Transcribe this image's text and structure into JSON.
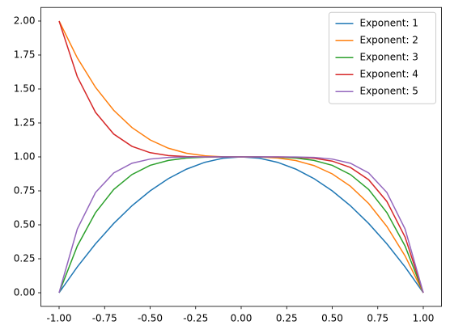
{
  "chart_data": {
    "type": "line",
    "x": [
      -1,
      -0.9,
      -0.8,
      -0.7,
      -0.6,
      -0.5,
      -0.4,
      -0.3,
      -0.2,
      -0.1,
      0,
      0.1,
      0.2,
      0.3,
      0.4,
      0.5,
      0.6,
      0.7,
      0.8,
      0.9,
      1
    ],
    "series": [
      {
        "name": "Exponent: 1",
        "color": "#1f77b4",
        "values": [
          0,
          0.19,
          0.36,
          0.51,
          0.64,
          0.75,
          0.84,
          0.91,
          0.96,
          0.99,
          1,
          0.99,
          0.96,
          0.91,
          0.84,
          0.75,
          0.64,
          0.51,
          0.36,
          0.19,
          0
        ]
      },
      {
        "name": "Exponent: 2",
        "color": "#ff7f0e",
        "values": [
          2,
          1.729,
          1.512,
          1.343,
          1.216,
          1.125,
          1.064,
          1.027,
          1.008,
          1.001,
          1,
          0.999,
          0.992,
          0.973,
          0.936,
          0.875,
          0.784,
          0.657,
          0.488,
          0.271,
          0
        ]
      },
      {
        "name": "Exponent: 3",
        "color": "#2ca02c",
        "values": [
          0,
          0.344,
          0.59,
          0.76,
          0.87,
          0.938,
          0.974,
          0.992,
          0.998,
          1,
          1,
          1,
          0.998,
          0.992,
          0.974,
          0.938,
          0.87,
          0.76,
          0.59,
          0.344,
          0
        ]
      },
      {
        "name": "Exponent: 4",
        "color": "#d62728",
        "values": [
          2,
          1.59,
          1.328,
          1.168,
          1.078,
          1.031,
          1.01,
          1.002,
          1,
          1,
          1,
          1,
          1,
          0.998,
          0.99,
          0.969,
          0.922,
          0.832,
          0.672,
          0.41,
          0
        ]
      },
      {
        "name": "Exponent: 5",
        "color": "#9467bd",
        "values": [
          0,
          0.469,
          0.738,
          0.882,
          0.953,
          0.984,
          0.996,
          0.999,
          1,
          1,
          1,
          1,
          1,
          0.999,
          0.996,
          0.984,
          0.953,
          0.882,
          0.738,
          0.469,
          0
        ]
      }
    ],
    "xlim": [
      -1.1,
      1.1
    ],
    "ylim": [
      -0.1,
      2.1
    ],
    "xticks": [
      {
        "value": -1,
        "label": "-1.00"
      },
      {
        "value": -0.75,
        "label": "-0.75"
      },
      {
        "value": -0.5,
        "label": "-0.50"
      },
      {
        "value": -0.25,
        "label": "-0.25"
      },
      {
        "value": 0,
        "label": "0.00"
      },
      {
        "value": 0.25,
        "label": "0.25"
      },
      {
        "value": 0.5,
        "label": "0.50"
      },
      {
        "value": 0.75,
        "label": "0.75"
      },
      {
        "value": 1,
        "label": "1.00"
      }
    ],
    "yticks": [
      {
        "value": 0,
        "label": "0.00"
      },
      {
        "value": 0.25,
        "label": "0.25"
      },
      {
        "value": 0.5,
        "label": "0.50"
      },
      {
        "value": 0.75,
        "label": "0.75"
      },
      {
        "value": 1,
        "label": "1.00"
      },
      {
        "value": 1.25,
        "label": "1.25"
      },
      {
        "value": 1.5,
        "label": "1.50"
      },
      {
        "value": 1.75,
        "label": "1.75"
      },
      {
        "value": 2,
        "label": "2.00"
      }
    ],
    "legend": "upper-right",
    "grid": false
  }
}
